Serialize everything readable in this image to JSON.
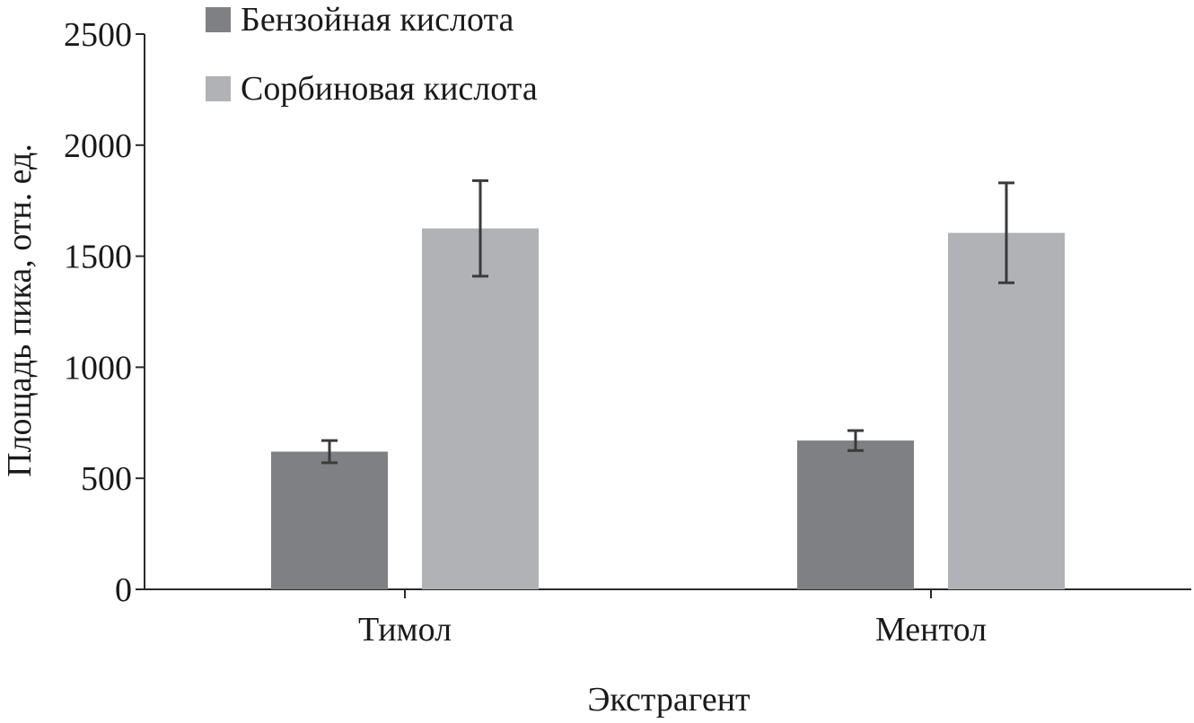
{
  "chart_data": {
    "type": "bar",
    "title": "",
    "xlabel": "Экстрагент",
    "ylabel": "Площадь пика, отн. ед.",
    "ylim": [
      0,
      2500
    ],
    "yticks": [
      0,
      500,
      1000,
      1500,
      2000,
      2500
    ],
    "categories": [
      "Тимол",
      "Ментол"
    ],
    "grid": false,
    "legend_position": "top-left",
    "series": [
      {
        "name": "Бензойная кислота",
        "color": "#7f8083",
        "values": [
          620,
          670
        ],
        "errors": [
          50,
          45
        ]
      },
      {
        "name": "Сорбиновая кислота",
        "color": "#b1b2b5",
        "values": [
          1625,
          1605
        ],
        "errors": [
          215,
          225
        ]
      }
    ]
  }
}
